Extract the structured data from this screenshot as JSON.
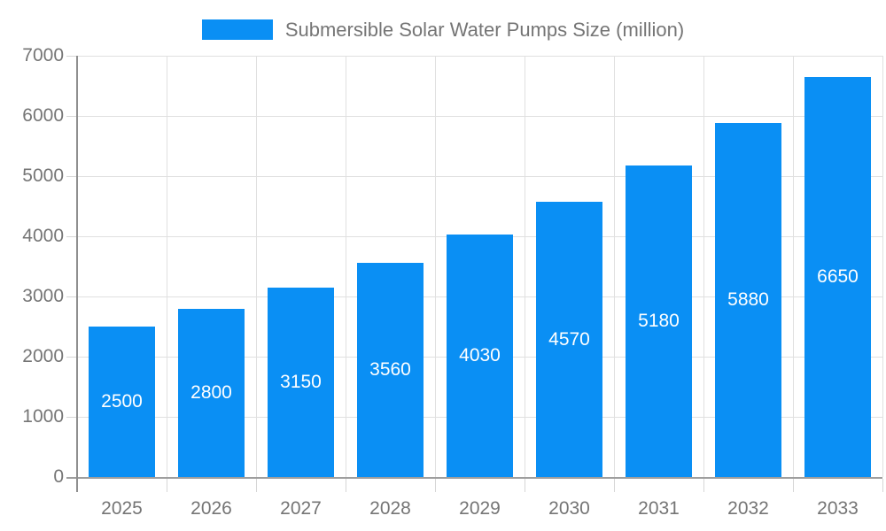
{
  "chart_data": {
    "type": "bar",
    "title": "Submersible Solar Water Pumps Size (million)",
    "legend": "Submersible Solar Water Pumps Size (million)",
    "legend_position": "top-center",
    "categories": [
      "2025",
      "2026",
      "2027",
      "2028",
      "2029",
      "2030",
      "2031",
      "2032",
      "2033"
    ],
    "values": [
      2500,
      2800,
      3150,
      3560,
      4030,
      4570,
      5180,
      5880,
      6650
    ],
    "xlabel": "",
    "ylabel": "",
    "ylim": [
      0,
      7000
    ],
    "ytick_step": 1000,
    "ytick_labels": [
      "0",
      "1000",
      "2000",
      "3000",
      "4000",
      "5000",
      "6000",
      "7000"
    ],
    "grid": true,
    "bar_color": "#0a8ff4",
    "bar_label_color": "#ffffff",
    "axis_text_color": "#757575",
    "gridline_color": "#e0e0e0",
    "axis_line_color": "#9e9e9e"
  }
}
